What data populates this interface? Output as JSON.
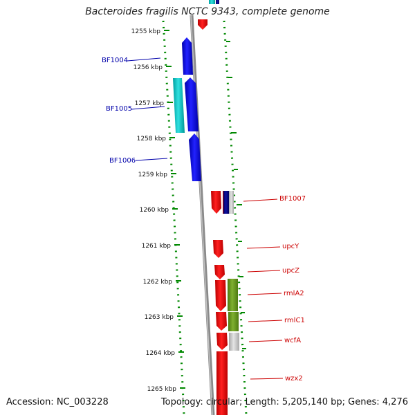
{
  "title": "Bacteroides fragilis NCTC 9343, complete genome",
  "footer": {
    "accession": "Accession: NC_003228",
    "summary": "Topology: circular; Length: 5,205,140 bp; Genes: 4,276"
  },
  "ticks": [
    "1255 kbp",
    "1256 kbp",
    "1257 kbp",
    "1258 kbp",
    "1259 kbp",
    "1260 kbp",
    "1261 kbp",
    "1262 kbp",
    "1263 kbp",
    "1264 kbp",
    "1265 kbp"
  ],
  "labels_left": [
    "BF1004",
    "BF1005",
    "BF1006"
  ],
  "labels_right": [
    "BF1007",
    "upcY",
    "upcZ",
    "rmlA2",
    "rmlC1",
    "wcfA",
    "wzx2"
  ],
  "colors": {
    "blue_label": "#0000aa",
    "red_label": "#cc0000",
    "dots": "#008800",
    "backbone": "#8a8a8a",
    "blue_gene": "#0000ee",
    "cyan_gene": "#00c0c0",
    "red_gene": "#ee0000",
    "olive_gene": "#6a9a20",
    "gray_gene": "#c8c8c8",
    "navy_gene": "#000080"
  }
}
